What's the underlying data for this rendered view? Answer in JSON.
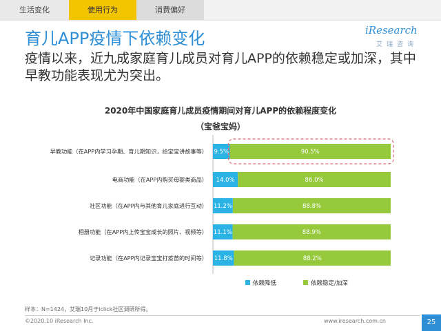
{
  "tabs": [
    {
      "label": "生活变化"
    },
    {
      "label": "使用行为"
    },
    {
      "label": "消费偏好"
    }
  ],
  "header": {
    "title": "育儿APP疫情下依赖变化",
    "logo": "iResearch",
    "logo_sub": "艾瑞咨询"
  },
  "lead": "疫情以来，近九成家庭育儿成员对育儿APP的依赖稳定或加深，其中早教功能表现尤为突出。",
  "chart_data": {
    "type": "bar",
    "orientation": "horizontal",
    "stacked": true,
    "percent": true,
    "title": "2020年中国家庭育儿成员疫情期间对育儿APP的依赖程度变化",
    "subtitle": "（宝爸宝妈）",
    "categories": [
      "早教功能（在APP内学习孕期、育儿期知识，给宝宝讲故事等）",
      "电商功能（在APP内购买母婴类商品）",
      "社区功能（在APP内与其他育儿家庭进行互动）",
      "相册功能（在APP内上传宝宝成长的照片、视频等）",
      "记录功能（在APP内记录宝宝打疫苗的时间等）"
    ],
    "series": [
      {
        "name": "依赖降低",
        "values": [
          9.5,
          14.0,
          11.2,
          11.1,
          11.8
        ],
        "labels": [
          "9.5%",
          "14.0%",
          "11.2%",
          "11.1%",
          "11.8%"
        ],
        "color": "#2bb3e6"
      },
      {
        "name": "依赖稳定/加深",
        "values": [
          90.5,
          86.0,
          88.8,
          88.9,
          88.2
        ],
        "labels": [
          "90.5%",
          "86.0%",
          "88.8%",
          "88.9%",
          "88.2%"
        ],
        "color": "#97c93d"
      }
    ],
    "xlim": [
      0,
      100
    ],
    "legend": "bottom-right",
    "highlight_row": 0,
    "highlight_color": "#e06a7a"
  },
  "footnote": "样本：N=1424，艾瑞10月于iclick社区调研所得。",
  "footer": {
    "copyright": "©2020.10 iResearch Inc.",
    "website": "www.iresearch.com.cn",
    "page": "25"
  }
}
